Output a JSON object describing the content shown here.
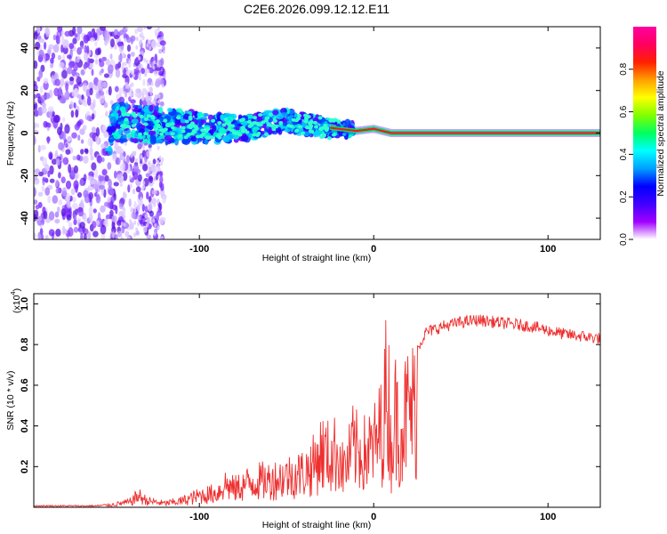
{
  "chart_data": [
    {
      "type": "heatmap",
      "title": "C2E6.2026.099.12.12.E11",
      "xlabel": "Height of straight line (km)",
      "ylabel": "Frequency (Hz)",
      "xlim": [
        -195,
        130
      ],
      "ylim": [
        -50,
        50
      ],
      "x_ticks": [
        -100,
        0,
        100
      ],
      "x_tick_labels": [
        "-100",
        "0",
        "100"
      ],
      "y_ticks": [
        -40,
        -20,
        0,
        20,
        40
      ],
      "y_tick_labels": [
        "-40",
        "-20",
        "0",
        "20",
        "40"
      ],
      "description_trace": {
        "x": [
          -150,
          -130,
          -110,
          -90,
          -70,
          -50,
          -40,
          -30,
          -20,
          -10,
          0,
          10,
          130
        ],
        "center_freq_hz": [
          5,
          4,
          3,
          2,
          3,
          6,
          4,
          3,
          2,
          1,
          2,
          0,
          0
        ]
      },
      "colorbar": {
        "label": "Normalized spectral amplitude",
        "range": [
          0,
          1
        ],
        "ticks": [
          0.0,
          0.2,
          0.4,
          0.6,
          0.8
        ],
        "tick_labels": [
          "0.0",
          "0.2",
          "0.4",
          "0.6",
          "0.8"
        ],
        "colors": [
          "#ffffff",
          "#a000ff",
          "#4000ff",
          "#0000ff",
          "#00a0ff",
          "#00ffff",
          "#00ff60",
          "#80ff00",
          "#ffff00",
          "#ffa000",
          "#ff2000",
          "#ff0060",
          "#ff00a0"
        ]
      }
    },
    {
      "type": "line",
      "title": "",
      "xlabel": "Height of straight line (km)",
      "ylabel": "SNR (10 * v/v)",
      "scale_note": "(x10",
      "scale_exp": "4",
      "scale_close": ")",
      "xlim": [
        -195,
        130
      ],
      "ylim": [
        0,
        1.05
      ],
      "x_ticks": [
        -100,
        0,
        100
      ],
      "x_tick_labels": [
        "-100",
        "0",
        "100"
      ],
      "y_ticks": [
        0.2,
        0.4,
        0.6,
        0.8,
        1.0
      ],
      "y_tick_labels": [
        "0.2",
        "0.4",
        "0.6",
        "0.8",
        "1.0"
      ],
      "color": "#ee3030",
      "series": [
        {
          "name": "SNR",
          "x": [
            -195,
            -160,
            -150,
            -140,
            -135,
            -130,
            -120,
            -110,
            -100,
            -90,
            -85,
            -80,
            -70,
            -60,
            -50,
            -40,
            -35,
            -30,
            -25,
            -20,
            -18,
            -15,
            -12,
            -10,
            -5,
            0,
            3,
            5,
            8,
            10,
            12,
            15,
            18,
            20,
            25,
            30,
            40,
            50,
            60,
            70,
            80,
            90,
            100,
            110,
            120,
            130
          ],
          "y": [
            0.01,
            0.01,
            0.02,
            0.04,
            0.09,
            0.05,
            0.03,
            0.05,
            0.09,
            0.11,
            0.18,
            0.14,
            0.2,
            0.21,
            0.24,
            0.27,
            0.32,
            0.43,
            0.39,
            0.44,
            0.3,
            0.34,
            0.47,
            0.44,
            0.42,
            0.47,
            0.55,
            0.65,
            0.98,
            0.42,
            0.72,
            0.62,
            0.7,
            0.75,
            0.78,
            0.86,
            0.89,
            0.91,
            0.92,
            0.91,
            0.9,
            0.89,
            0.87,
            0.85,
            0.84,
            0.83
          ]
        }
      ]
    }
  ]
}
